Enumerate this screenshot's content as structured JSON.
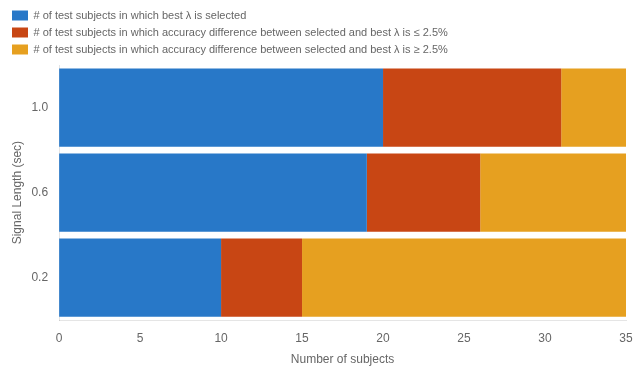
{
  "chart_data": {
    "type": "bar",
    "orientation": "horizontal",
    "stacked": true,
    "categories": [
      "0.2",
      "0.6",
      "1.0"
    ],
    "series": [
      {
        "name": "# of test subjects in which best λ is selected",
        "color": "#2878C8",
        "values": [
          10,
          19,
          20
        ]
      },
      {
        "name": "# of test subjects in which accuracy difference between selected and best λ is ≤ 2.5%",
        "color": "#C84614",
        "values": [
          5,
          7,
          11
        ]
      },
      {
        "name": "# of test subjects in which accuracy difference between selected and best λ is ≥ 2.5%",
        "color": "#E6A020",
        "values": [
          20,
          9,
          4
        ]
      }
    ],
    "x_label": "Number of subjects",
    "y_label": "Signal Length (sec)",
    "xlim": [
      0,
      35
    ],
    "xticks": [
      0,
      5,
      10,
      15,
      20,
      25,
      30,
      35
    ],
    "grid": false,
    "legend": "upper left"
  }
}
